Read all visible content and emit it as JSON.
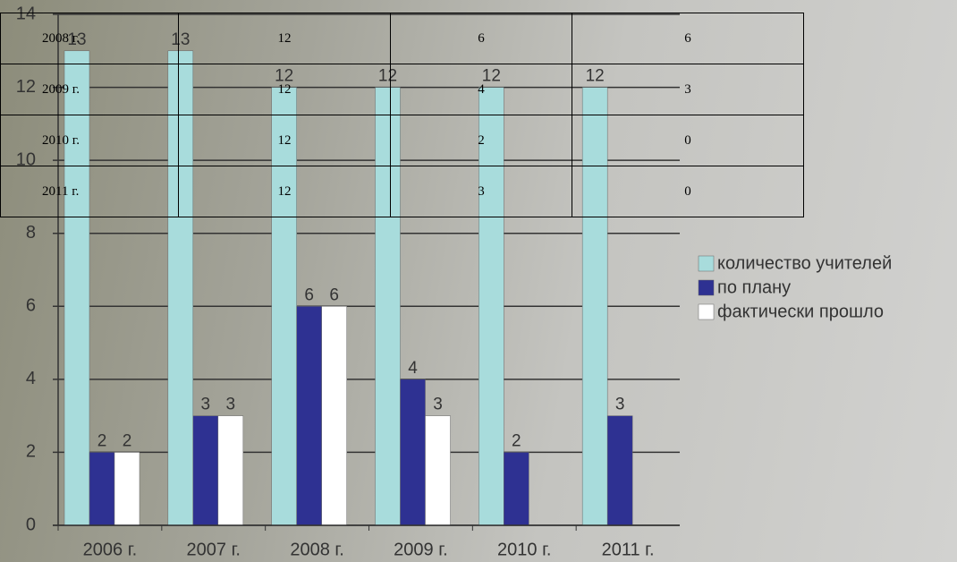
{
  "chart_data": {
    "type": "bar",
    "categories": [
      "2006 г.",
      "2007 г.",
      "2008 г.",
      "2009 г.",
      "2010 г.",
      "2011 г."
    ],
    "series": [
      {
        "name": "количество учителей",
        "color": "#a8dcdc",
        "values": [
          13,
          13,
          12,
          12,
          12,
          12
        ]
      },
      {
        "name": "по плану",
        "color": "#2e3192",
        "values": [
          2,
          3,
          6,
          4,
          2,
          3
        ]
      },
      {
        "name": "фактически прошло",
        "color": "#ffffff",
        "values": [
          2,
          3,
          6,
          3,
          null,
          null
        ]
      }
    ],
    "ylim": [
      0,
      14
    ],
    "yticks": [
      0,
      2,
      4,
      6,
      8,
      10,
      12,
      14
    ],
    "grid": true,
    "legend": "right"
  },
  "table": {
    "rows": [
      [
        "2008 г.",
        12,
        6,
        6
      ],
      [
        "2009 г.",
        12,
        4,
        3
      ],
      [
        "2010 г.",
        12,
        2,
        0
      ],
      [
        "2011 г.",
        12,
        3,
        0
      ]
    ]
  }
}
